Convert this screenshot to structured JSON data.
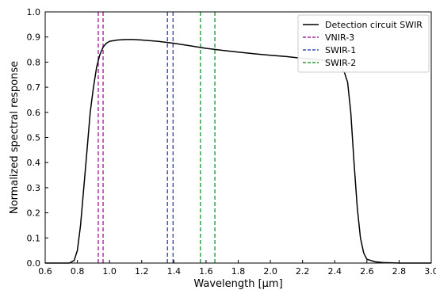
{
  "chart_data": {
    "type": "line",
    "xlabel": "Wavelength [µm]",
    "ylabel": "Normalized spectral response",
    "xlim": [
      0.6,
      3.0
    ],
    "ylim": [
      0.0,
      1.0
    ],
    "xticks": [
      "0.6",
      "0.8",
      "1.0",
      "1.2",
      "1.4",
      "1.6",
      "1.8",
      "2.0",
      "2.2",
      "2.4",
      "2.6",
      "2.8",
      "3.0"
    ],
    "yticks": [
      "0.0",
      "0.1",
      "0.2",
      "0.3",
      "0.4",
      "0.5",
      "0.6",
      "0.7",
      "0.8",
      "0.9",
      "1.0"
    ],
    "grid": false,
    "legend_position": "top-right",
    "series": [
      {
        "name": "Detection circuit SWIR",
        "color": "#000000",
        "style": "solid",
        "x": [
          0.6,
          0.75,
          0.78,
          0.8,
          0.82,
          0.84,
          0.86,
          0.88,
          0.9,
          0.92,
          0.94,
          0.96,
          0.98,
          1.0,
          1.05,
          1.1,
          1.15,
          1.2,
          1.3,
          1.4,
          1.5,
          1.6,
          1.7,
          1.8,
          1.9,
          2.0,
          2.1,
          2.2,
          2.3,
          2.4,
          2.44,
          2.46,
          2.48,
          2.5,
          2.52,
          2.54,
          2.56,
          2.58,
          2.6,
          2.65,
          2.7,
          2.8,
          2.9,
          3.0
        ],
        "y": [
          0.0,
          0.0,
          0.01,
          0.05,
          0.15,
          0.3,
          0.45,
          0.6,
          0.7,
          0.78,
          0.83,
          0.86,
          0.875,
          0.883,
          0.888,
          0.89,
          0.89,
          0.888,
          0.883,
          0.875,
          0.865,
          0.855,
          0.847,
          0.84,
          0.833,
          0.827,
          0.822,
          0.815,
          0.81,
          0.8,
          0.78,
          0.76,
          0.72,
          0.6,
          0.4,
          0.22,
          0.1,
          0.04,
          0.015,
          0.005,
          0.002,
          0.0,
          0.0,
          0.0
        ]
      },
      {
        "name": "VNIR-3",
        "color": "#a0289a",
        "style": "dashed",
        "x_lines": [
          0.93,
          0.96
        ]
      },
      {
        "name": "SWIR-1",
        "color": "#3a4db0",
        "style": "dashed",
        "x_lines": [
          1.36,
          1.395
        ]
      },
      {
        "name": "SWIR-2",
        "color": "#2a9a3a",
        "style": "dashed",
        "x_lines": [
          1.565,
          1.655
        ]
      }
    ]
  }
}
